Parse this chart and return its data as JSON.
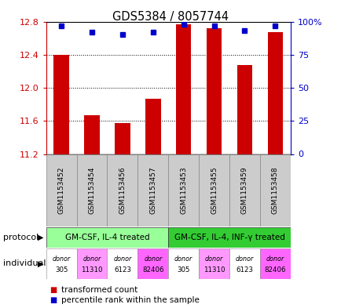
{
  "title": "GDS5384 / 8057744",
  "samples": [
    "GSM1153452",
    "GSM1153454",
    "GSM1153456",
    "GSM1153457",
    "GSM1153453",
    "GSM1153455",
    "GSM1153459",
    "GSM1153458"
  ],
  "bar_values": [
    12.4,
    11.67,
    11.57,
    11.87,
    12.77,
    12.72,
    12.27,
    12.67
  ],
  "percentile_values": [
    97,
    92,
    90,
    92,
    98,
    97,
    93,
    97
  ],
  "ylim_left": [
    11.2,
    12.8
  ],
  "ylim_right": [
    0,
    100
  ],
  "yticks_left": [
    11.2,
    11.6,
    12.0,
    12.4,
    12.8
  ],
  "yticks_right_vals": [
    0,
    25,
    50,
    75,
    100
  ],
  "yticks_right_labels": [
    "0",
    "25",
    "50",
    "75",
    "100%"
  ],
  "bar_color": "#cc0000",
  "dot_color": "#0000cc",
  "bar_width": 0.5,
  "protocols": [
    {
      "label": "GM-CSF, IL-4 treated",
      "start": 0,
      "end": 4,
      "color": "#99ff99"
    },
    {
      "label": "GM-CSF, IL-4, INF-γ treated",
      "start": 4,
      "end": 8,
      "color": "#33cc33"
    }
  ],
  "individual_colors": [
    "#ffffff",
    "#ff99ff",
    "#ffffff",
    "#ff66ff",
    "#ffffff",
    "#ff99ff",
    "#ffffff",
    "#ff66ff"
  ],
  "individual_labels_top": [
    "donor",
    "donor",
    "donor",
    "donor",
    "donor",
    "donor",
    "donor",
    "donor"
  ],
  "individual_labels_bot": [
    "305",
    "11310",
    "6123",
    "82406",
    "305",
    "11310",
    "6123",
    "82406"
  ],
  "left_axis_color": "#cc0000",
  "right_axis_color": "#0000cc",
  "grid_color": "#000000",
  "background_color": "#ffffff",
  "label_protocol": "protocol",
  "label_individual": "individual",
  "sample_bg_color": "#cccccc"
}
